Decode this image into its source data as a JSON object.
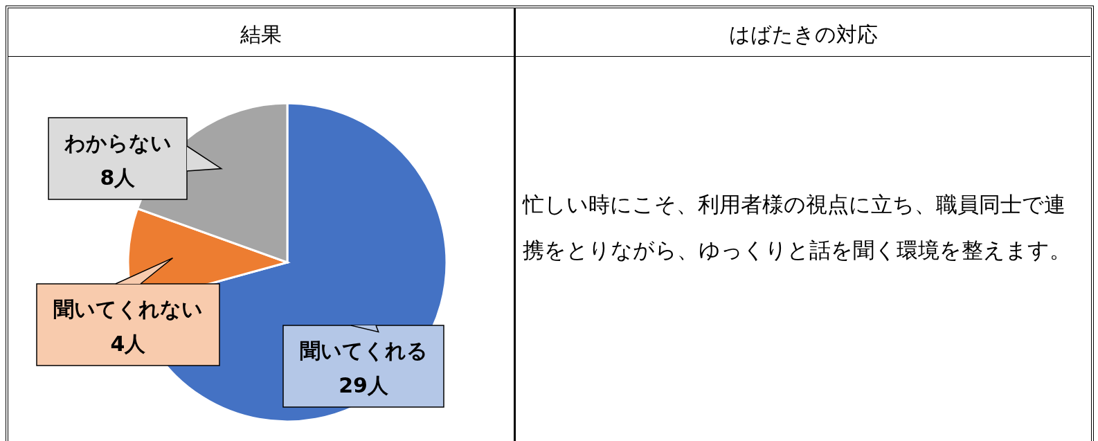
{
  "chart_data": [
    {
      "type": "pie",
      "title": "結果",
      "categories": [
        "聞いてくれる",
        "聞いてくれない",
        "わからない"
      ],
      "values": [
        29,
        4,
        8
      ],
      "colors": [
        "#4472c4",
        "#ed7d31",
        "#a5a5a5"
      ],
      "value_labels": [
        "29人",
        "4人",
        "8人"
      ]
    },
    {
      "type": "other",
      "title": "はばたきの対応",
      "annotations": [
        "忙しい時にこそ、利用者様の視点に立ち、職員同士で連携をとりながら、ゆっくりと話を聞く環境を整えます。"
      ]
    }
  ]
}
